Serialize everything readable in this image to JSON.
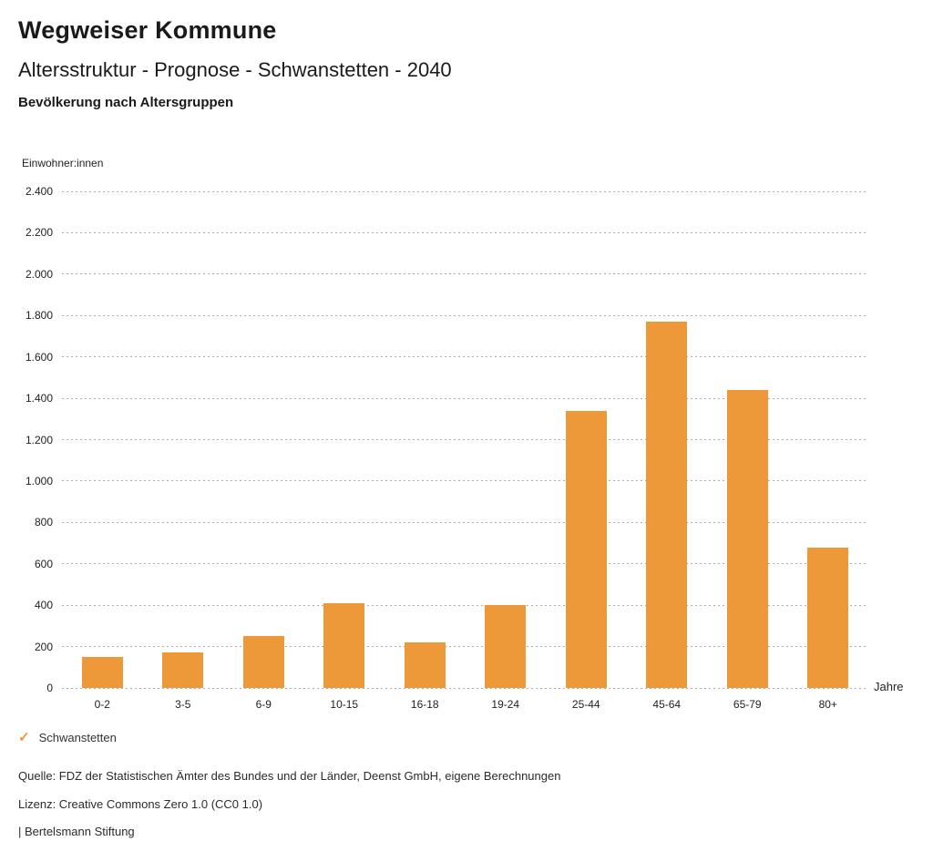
{
  "page": {
    "title": "Wegweiser Kommune",
    "subtitle": "Altersstruktur - Prognose - Schwanstetten - 2040",
    "chart_heading": "Bevölkerung nach Altersgruppen"
  },
  "chart_data": {
    "type": "bar",
    "title": "Bevölkerung nach Altersgruppen",
    "categories": [
      "0-2",
      "3-5",
      "6-9",
      "10-15",
      "16-18",
      "19-24",
      "25-44",
      "45-64",
      "65-79",
      "80+"
    ],
    "series": [
      {
        "name": "Schwanstetten",
        "values": [
          150,
          170,
          250,
          410,
          220,
          400,
          1340,
          1770,
          1440,
          680
        ]
      }
    ],
    "xlabel": "Jahre",
    "ylabel": "Einwohner:innen",
    "ylim": [
      0,
      2400
    ],
    "ytick_step": 200,
    "ytick_labels": [
      "0",
      "200",
      "400",
      "600",
      "800",
      "1.000",
      "1.200",
      "1.400",
      "1.600",
      "1.800",
      "2.000",
      "2.200",
      "2.400"
    ],
    "grid": "horizontal-dotted",
    "bar_color": "#ED9839",
    "legend_position": "bottom-left"
  },
  "legend": {
    "check_glyph": "✓",
    "label": "Schwanstetten",
    "accent_color": "#ED9839"
  },
  "footer": {
    "source": "Quelle: FDZ der Statistischen Ämter des Bundes und der Länder, Deenst GmbH, eigene Berechnungen",
    "license": "Lizenz: Creative Commons Zero 1.0 (CC0 1.0)",
    "attribution": "| Bertelsmann Stiftung"
  }
}
